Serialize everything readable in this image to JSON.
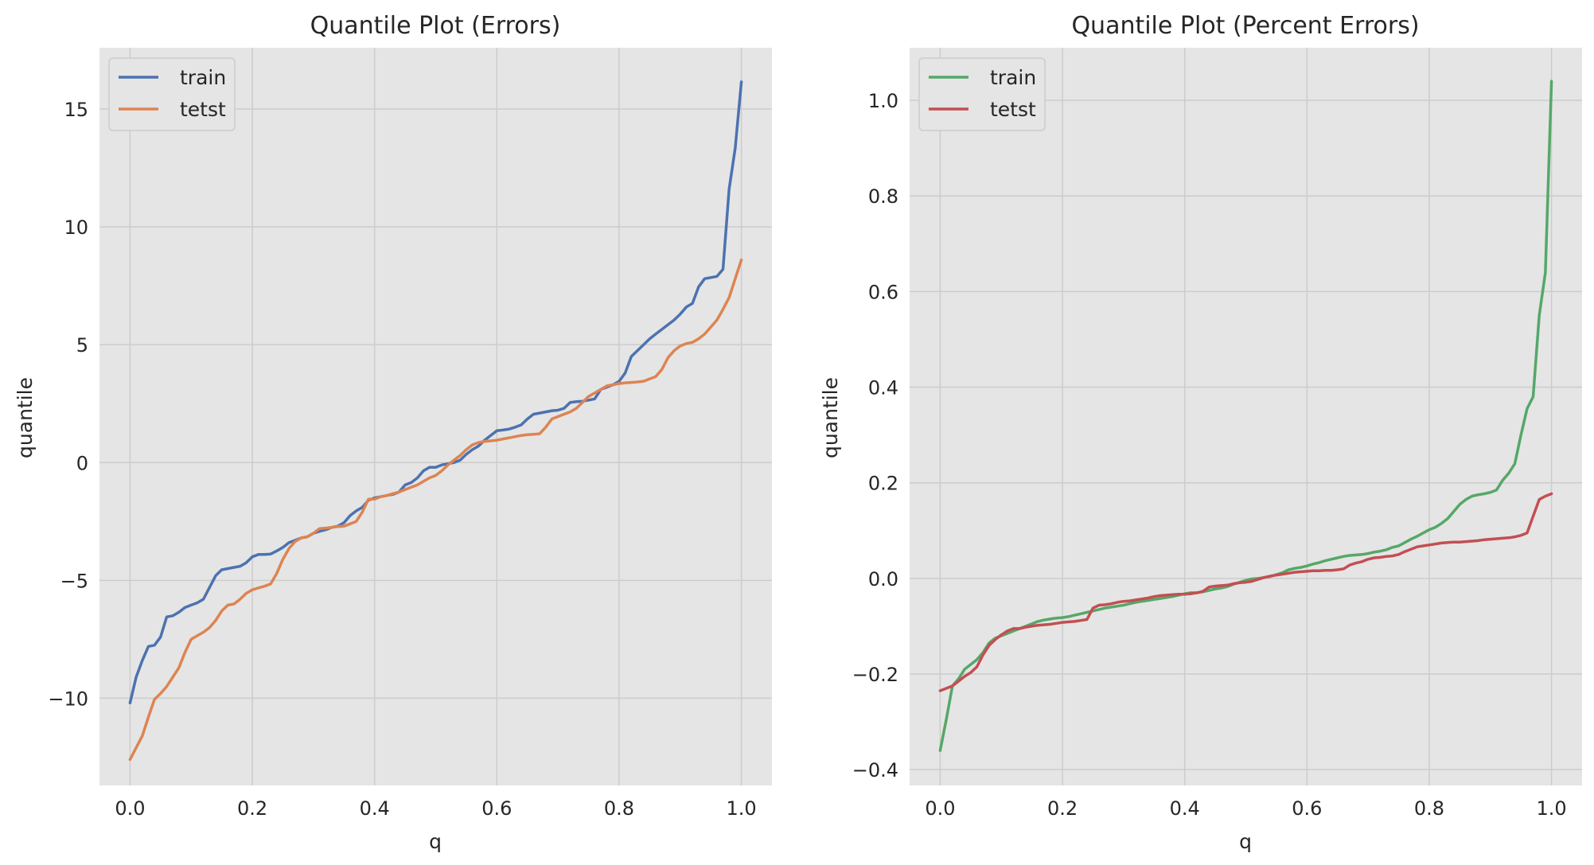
{
  "chart_data": [
    {
      "type": "line",
      "title": "Quantile Plot (Errors)",
      "xlabel": "q",
      "ylabel": "quantile",
      "xlim": [
        -0.05,
        1.05
      ],
      "ylim": [
        -13.7,
        17.6
      ],
      "xticks": [
        0.0,
        0.2,
        0.4,
        0.6,
        0.8,
        1.0
      ],
      "xtick_labels": [
        "0.0",
        "0.2",
        "0.4",
        "0.6",
        "0.8",
        "1.0"
      ],
      "yticks": [
        -10,
        -5,
        0,
        5,
        10,
        15
      ],
      "ytick_labels": [
        "−10",
        "−5",
        "0",
        "5",
        "10",
        "15"
      ],
      "grid": true,
      "legend": "top-left",
      "series": [
        {
          "name": "train",
          "color": "#4c72b0",
          "x": [
            0.0,
            0.01,
            0.02,
            0.03,
            0.04,
            0.05,
            0.06,
            0.07,
            0.08,
            0.09,
            0.1,
            0.11,
            0.12,
            0.13,
            0.14,
            0.15,
            0.16,
            0.17,
            0.18,
            0.19,
            0.2,
            0.21,
            0.22,
            0.23,
            0.24,
            0.25,
            0.26,
            0.27,
            0.28,
            0.29,
            0.3,
            0.31,
            0.32,
            0.33,
            0.34,
            0.35,
            0.36,
            0.37,
            0.38,
            0.39,
            0.4,
            0.41,
            0.42,
            0.43,
            0.44,
            0.45,
            0.46,
            0.47,
            0.48,
            0.49,
            0.5,
            0.51,
            0.52,
            0.53,
            0.54,
            0.55,
            0.56,
            0.57,
            0.58,
            0.59,
            0.6,
            0.61,
            0.62,
            0.63,
            0.64,
            0.65,
            0.66,
            0.67,
            0.68,
            0.69,
            0.7,
            0.71,
            0.72,
            0.73,
            0.74,
            0.75,
            0.76,
            0.77,
            0.78,
            0.79,
            0.8,
            0.81,
            0.82,
            0.83,
            0.84,
            0.85,
            0.86,
            0.87,
            0.88,
            0.89,
            0.9,
            0.91,
            0.92,
            0.93,
            0.94,
            0.95,
            0.96,
            0.97,
            0.98,
            0.99,
            1.0
          ],
          "y": [
            -10.2,
            -9.1,
            -8.4,
            -7.8,
            -7.75,
            -7.4,
            -6.55,
            -6.5,
            -6.35,
            -6.15,
            -6.05,
            -5.95,
            -5.8,
            -5.3,
            -4.8,
            -4.55,
            -4.5,
            -4.45,
            -4.4,
            -4.25,
            -4.0,
            -3.9,
            -3.9,
            -3.88,
            -3.75,
            -3.6,
            -3.4,
            -3.3,
            -3.2,
            -3.15,
            -3.0,
            -2.92,
            -2.85,
            -2.75,
            -2.7,
            -2.55,
            -2.25,
            -2.05,
            -1.9,
            -1.6,
            -1.5,
            -1.45,
            -1.4,
            -1.35,
            -1.25,
            -0.95,
            -0.85,
            -0.65,
            -0.35,
            -0.2,
            -0.2,
            -0.1,
            -0.05,
            0.0,
            0.1,
            0.35,
            0.55,
            0.7,
            0.95,
            1.15,
            1.35,
            1.38,
            1.42,
            1.5,
            1.6,
            1.85,
            2.05,
            2.1,
            2.15,
            2.2,
            2.22,
            2.3,
            2.55,
            2.58,
            2.6,
            2.65,
            2.7,
            3.1,
            3.2,
            3.3,
            3.45,
            3.8,
            4.5,
            4.75,
            5.0,
            5.25,
            5.45,
            5.65,
            5.85,
            6.05,
            6.3,
            6.6,
            6.75,
            7.45,
            7.8,
            7.85,
            7.9,
            8.2,
            11.6,
            13.35,
            16.15
          ]
        },
        {
          "name": "tetst",
          "color": "#dd8452",
          "x": [
            0.0,
            0.01,
            0.02,
            0.03,
            0.04,
            0.05,
            0.06,
            0.07,
            0.08,
            0.09,
            0.1,
            0.11,
            0.12,
            0.13,
            0.14,
            0.15,
            0.16,
            0.17,
            0.18,
            0.19,
            0.2,
            0.21,
            0.22,
            0.23,
            0.24,
            0.25,
            0.26,
            0.27,
            0.28,
            0.29,
            0.3,
            0.31,
            0.32,
            0.33,
            0.34,
            0.35,
            0.36,
            0.37,
            0.38,
            0.39,
            0.4,
            0.41,
            0.42,
            0.43,
            0.44,
            0.45,
            0.46,
            0.47,
            0.48,
            0.49,
            0.5,
            0.51,
            0.52,
            0.53,
            0.54,
            0.55,
            0.56,
            0.57,
            0.58,
            0.59,
            0.6,
            0.61,
            0.62,
            0.63,
            0.64,
            0.65,
            0.66,
            0.67,
            0.68,
            0.69,
            0.7,
            0.71,
            0.72,
            0.73,
            0.74,
            0.75,
            0.76,
            0.77,
            0.78,
            0.79,
            0.8,
            0.81,
            0.82,
            0.83,
            0.84,
            0.85,
            0.86,
            0.87,
            0.88,
            0.89,
            0.9,
            0.91,
            0.92,
            0.93,
            0.94,
            0.95,
            0.96,
            0.97,
            0.98,
            0.99,
            1.0
          ],
          "y": [
            -12.6,
            -12.1,
            -11.6,
            -10.8,
            -10.05,
            -9.8,
            -9.5,
            -9.1,
            -8.7,
            -8.05,
            -7.5,
            -7.35,
            -7.2,
            -7.0,
            -6.7,
            -6.3,
            -6.05,
            -6.0,
            -5.8,
            -5.55,
            -5.4,
            -5.32,
            -5.25,
            -5.15,
            -4.7,
            -4.1,
            -3.65,
            -3.35,
            -3.2,
            -3.15,
            -3.0,
            -2.8,
            -2.78,
            -2.75,
            -2.72,
            -2.7,
            -2.6,
            -2.5,
            -2.1,
            -1.55,
            -1.55,
            -1.45,
            -1.4,
            -1.32,
            -1.25,
            -1.15,
            -1.05,
            -0.95,
            -0.8,
            -0.65,
            -0.55,
            -0.35,
            -0.1,
            0.1,
            0.3,
            0.55,
            0.75,
            0.85,
            0.9,
            0.92,
            0.95,
            1.0,
            1.05,
            1.1,
            1.15,
            1.18,
            1.2,
            1.22,
            1.5,
            1.85,
            1.95,
            2.05,
            2.15,
            2.3,
            2.55,
            2.8,
            2.95,
            3.1,
            3.25,
            3.3,
            3.35,
            3.38,
            3.4,
            3.42,
            3.45,
            3.55,
            3.65,
            3.95,
            4.45,
            4.75,
            4.95,
            5.05,
            5.1,
            5.25,
            5.45,
            5.75,
            6.05,
            6.5,
            7.0,
            7.8,
            8.6
          ]
        }
      ]
    },
    {
      "type": "line",
      "title": "Quantile Plot (Percent Errors)",
      "xlabel": "q",
      "ylabel": "quantile",
      "xlim": [
        -0.05,
        1.05
      ],
      "ylim": [
        -0.433,
        1.11
      ],
      "xticks": [
        0.0,
        0.2,
        0.4,
        0.6,
        0.8,
        1.0
      ],
      "xtick_labels": [
        "0.0",
        "0.2",
        "0.4",
        "0.6",
        "0.8",
        "1.0"
      ],
      "yticks": [
        -0.4,
        -0.2,
        0.0,
        0.2,
        0.4,
        0.6,
        0.8,
        1.0
      ],
      "ytick_labels": [
        "−0.4",
        "−0.2",
        "0.0",
        "0.2",
        "0.4",
        "0.6",
        "0.8",
        "1.0"
      ],
      "grid": true,
      "legend": "top-left",
      "series": [
        {
          "name": "train",
          "color": "#55a868",
          "x": [
            0.0,
            0.01,
            0.02,
            0.03,
            0.04,
            0.05,
            0.06,
            0.07,
            0.08,
            0.09,
            0.1,
            0.11,
            0.12,
            0.13,
            0.14,
            0.15,
            0.16,
            0.17,
            0.18,
            0.19,
            0.2,
            0.21,
            0.22,
            0.23,
            0.24,
            0.25,
            0.26,
            0.27,
            0.28,
            0.29,
            0.3,
            0.31,
            0.32,
            0.33,
            0.34,
            0.35,
            0.36,
            0.37,
            0.38,
            0.39,
            0.4,
            0.41,
            0.42,
            0.43,
            0.44,
            0.45,
            0.46,
            0.47,
            0.48,
            0.49,
            0.5,
            0.51,
            0.52,
            0.53,
            0.54,
            0.55,
            0.56,
            0.57,
            0.58,
            0.59,
            0.6,
            0.61,
            0.62,
            0.63,
            0.64,
            0.65,
            0.66,
            0.67,
            0.68,
            0.69,
            0.7,
            0.71,
            0.72,
            0.73,
            0.74,
            0.75,
            0.76,
            0.77,
            0.78,
            0.79,
            0.8,
            0.81,
            0.82,
            0.83,
            0.84,
            0.85,
            0.86,
            0.87,
            0.88,
            0.89,
            0.9,
            0.91,
            0.92,
            0.93,
            0.94,
            0.95,
            0.96,
            0.97,
            0.98,
            0.99,
            1.0
          ],
          "y": [
            -0.36,
            -0.295,
            -0.225,
            -0.21,
            -0.19,
            -0.18,
            -0.17,
            -0.155,
            -0.135,
            -0.125,
            -0.12,
            -0.115,
            -0.11,
            -0.105,
            -0.1,
            -0.095,
            -0.09,
            -0.087,
            -0.085,
            -0.083,
            -0.082,
            -0.08,
            -0.077,
            -0.074,
            -0.071,
            -0.068,
            -0.065,
            -0.062,
            -0.06,
            -0.058,
            -0.056,
            -0.053,
            -0.05,
            -0.048,
            -0.046,
            -0.044,
            -0.042,
            -0.04,
            -0.038,
            -0.035,
            -0.032,
            -0.03,
            -0.03,
            -0.028,
            -0.025,
            -0.022,
            -0.02,
            -0.017,
            -0.012,
            -0.008,
            -0.004,
            -0.001,
            0.0,
            0.002,
            0.004,
            0.008,
            0.012,
            0.018,
            0.021,
            0.023,
            0.026,
            0.03,
            0.033,
            0.037,
            0.04,
            0.043,
            0.046,
            0.048,
            0.049,
            0.05,
            0.052,
            0.055,
            0.057,
            0.06,
            0.065,
            0.068,
            0.075,
            0.082,
            0.088,
            0.095,
            0.102,
            0.107,
            0.115,
            0.125,
            0.14,
            0.155,
            0.165,
            0.172,
            0.175,
            0.177,
            0.18,
            0.185,
            0.205,
            0.22,
            0.24,
            0.3,
            0.355,
            0.38,
            0.55,
            0.64,
            1.04
          ]
        },
        {
          "name": "tetst",
          "color": "#c44e52",
          "x": [
            0.0,
            0.01,
            0.02,
            0.03,
            0.04,
            0.05,
            0.06,
            0.07,
            0.08,
            0.09,
            0.1,
            0.11,
            0.12,
            0.13,
            0.14,
            0.15,
            0.16,
            0.17,
            0.18,
            0.19,
            0.2,
            0.21,
            0.22,
            0.23,
            0.24,
            0.25,
            0.26,
            0.27,
            0.28,
            0.29,
            0.3,
            0.31,
            0.32,
            0.33,
            0.34,
            0.35,
            0.36,
            0.37,
            0.38,
            0.39,
            0.4,
            0.41,
            0.42,
            0.43,
            0.44,
            0.45,
            0.46,
            0.47,
            0.48,
            0.49,
            0.5,
            0.51,
            0.52,
            0.53,
            0.54,
            0.55,
            0.56,
            0.57,
            0.58,
            0.59,
            0.6,
            0.61,
            0.62,
            0.63,
            0.64,
            0.65,
            0.66,
            0.67,
            0.68,
            0.69,
            0.7,
            0.71,
            0.72,
            0.73,
            0.74,
            0.75,
            0.76,
            0.77,
            0.78,
            0.79,
            0.8,
            0.81,
            0.82,
            0.83,
            0.84,
            0.85,
            0.86,
            0.87,
            0.88,
            0.89,
            0.9,
            0.91,
            0.92,
            0.93,
            0.94,
            0.95,
            0.96,
            0.97,
            0.98,
            0.99,
            1.0
          ],
          "y": [
            -0.235,
            -0.23,
            -0.225,
            -0.215,
            -0.205,
            -0.197,
            -0.185,
            -0.16,
            -0.14,
            -0.128,
            -0.118,
            -0.11,
            -0.105,
            -0.105,
            -0.102,
            -0.1,
            -0.098,
            -0.097,
            -0.096,
            -0.094,
            -0.092,
            -0.091,
            -0.09,
            -0.088,
            -0.086,
            -0.062,
            -0.056,
            -0.055,
            -0.053,
            -0.05,
            -0.048,
            -0.047,
            -0.045,
            -0.043,
            -0.041,
            -0.038,
            -0.036,
            -0.035,
            -0.034,
            -0.033,
            -0.033,
            -0.032,
            -0.03,
            -0.027,
            -0.018,
            -0.016,
            -0.015,
            -0.014,
            -0.011,
            -0.009,
            -0.008,
            -0.006,
            -0.002,
            0.002,
            0.005,
            0.007,
            0.009,
            0.011,
            0.013,
            0.014,
            0.015,
            0.016,
            0.016,
            0.017,
            0.017,
            0.018,
            0.02,
            0.028,
            0.032,
            0.035,
            0.04,
            0.043,
            0.044,
            0.046,
            0.047,
            0.05,
            0.056,
            0.061,
            0.066,
            0.068,
            0.07,
            0.072,
            0.074,
            0.075,
            0.076,
            0.076,
            0.077,
            0.078,
            0.079,
            0.081,
            0.082,
            0.083,
            0.084,
            0.085,
            0.087,
            0.09,
            0.095,
            0.13,
            0.165,
            0.172,
            0.177
          ]
        }
      ]
    }
  ]
}
